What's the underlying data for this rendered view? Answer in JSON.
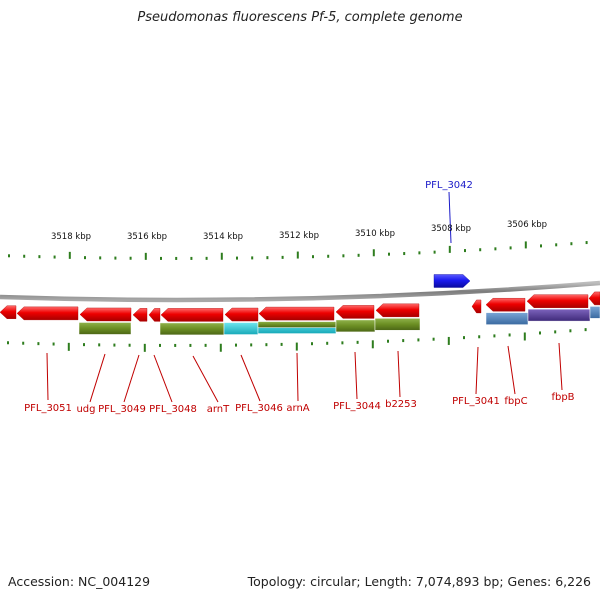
{
  "title": "Pseudomonas fluorescens Pf-5, complete genome",
  "footer": {
    "accession": "Accession: NC_004129",
    "summary": "Topology: circular; Length: 7,074,893 bp; Genes: 6,226"
  },
  "scale_labels": [
    "3518 kbp",
    "3516 kbp",
    "3514 kbp",
    "3512 kbp",
    "3510 kbp",
    "3508 kbp",
    "3506 kbp"
  ],
  "gene_labels_top": [
    "PFL_3042"
  ],
  "gene_labels_bottom": [
    "PFL_3051",
    "udg",
    "PFL_3049",
    "PFL_3048",
    "arnT",
    "PFL_3046",
    "arnA",
    "PFL_3044",
    "b2253",
    "PFL_3041",
    "fbpC",
    "fbpB"
  ],
  "colors": {
    "backbone": "#8a8a8a",
    "forward_gene": "#1a1aee",
    "reverse_gene": "#ee0000",
    "feature_olive": "#6b8e23",
    "feature_cyan": "#22c7d6",
    "feature_steelblue": "#4a7fb8",
    "feature_purple": "#5a3f9a",
    "tick": "#2e7d1e",
    "label_red": "#c00000",
    "label_blue": "#1a1ac8"
  },
  "icons": {
    "forward_gene": "right-pointing-arrow",
    "reverse_gene": "left-pointing-arrow"
  }
}
